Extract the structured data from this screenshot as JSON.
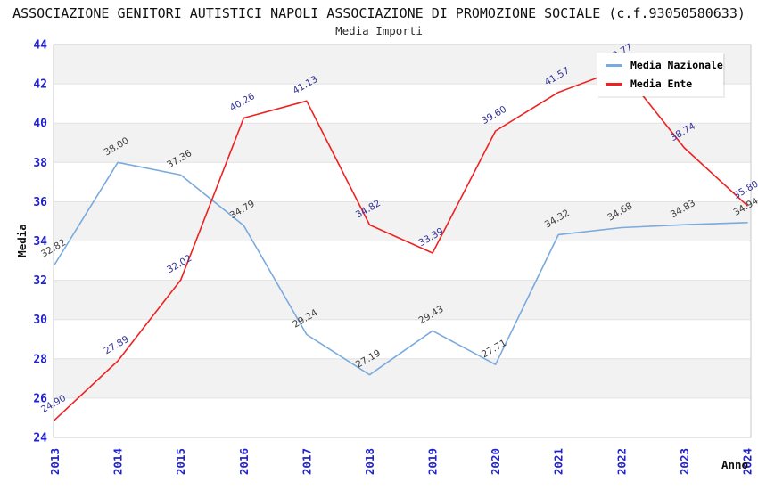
{
  "header": {
    "title": "ASSOCIAZIONE GENITORI AUTISTICI NAPOLI ASSOCIAZIONE DI PROMOZIONE SOCIALE (c.f.93050580633)",
    "subtitle": "Media Importi"
  },
  "colors": {
    "national_line": "#7aaade",
    "entity_line": "#ee2222",
    "axis_ticks": "#2222cc",
    "national_labels": "#3c3c3c",
    "entity_labels": "#333399",
    "band_fill": "#f2f2f2",
    "grid_line": "#e2e2e2",
    "plot_border": "#c9c9c9"
  },
  "chart_data": {
    "type": "line",
    "title": "Media Importi",
    "x": [
      2013,
      2014,
      2015,
      2016,
      2017,
      2018,
      2019,
      2020,
      2021,
      2022,
      2023,
      2024
    ],
    "xlabel": "Anno",
    "ylabel": "Media",
    "ylim": [
      24,
      44
    ],
    "yticks": [
      24,
      26,
      28,
      30,
      32,
      34,
      36,
      38,
      40,
      42,
      44
    ],
    "grid": "horizontal alternating gray bands every 2 units",
    "legend_position": "top-right",
    "point_labels_visible": true,
    "series": [
      {
        "name": "Media Nazionale",
        "color": "#7aaade",
        "label_color": "#3c3c3c",
        "values": [
          32.82,
          38.0,
          37.36,
          34.79,
          29.24,
          27.19,
          29.43,
          27.71,
          34.32,
          34.68,
          34.83,
          34.94
        ]
      },
      {
        "name": "Media Ente",
        "color": "#ee2222",
        "label_color": "#333399",
        "values": [
          24.9,
          27.89,
          32.02,
          40.26,
          41.13,
          34.82,
          33.39,
          39.6,
          41.57,
          42.77,
          38.74,
          35.8
        ]
      }
    ]
  }
}
